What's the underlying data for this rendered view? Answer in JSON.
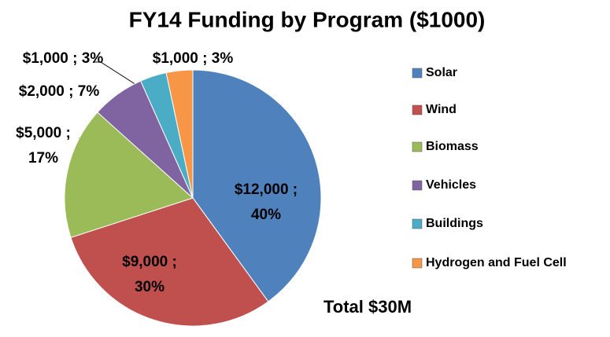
{
  "chart_data": {
    "type": "pie",
    "title": "FY14 Funding by Program ($1000)",
    "categories": [
      "Solar",
      "Wind",
      "Biomass",
      "Vehicles",
      "Buildings",
      "Hydrogen and Fuel Cell"
    ],
    "values": [
      12000,
      9000,
      5000,
      2000,
      1000,
      1000
    ],
    "value_labels": [
      "$12,000 ; 40%",
      "$9,000 ; 30%",
      "$5,000 ; 17%",
      "$2,000 ; 7%",
      "$1,000 ; 3%",
      "$1,000 ; 3%"
    ],
    "colors": [
      "#4f81bd",
      "#c0504d",
      "#9bbb59",
      "#8064a2",
      "#4bacc6",
      "#f79646"
    ],
    "annotation": "Total $30M",
    "legend": "right"
  }
}
